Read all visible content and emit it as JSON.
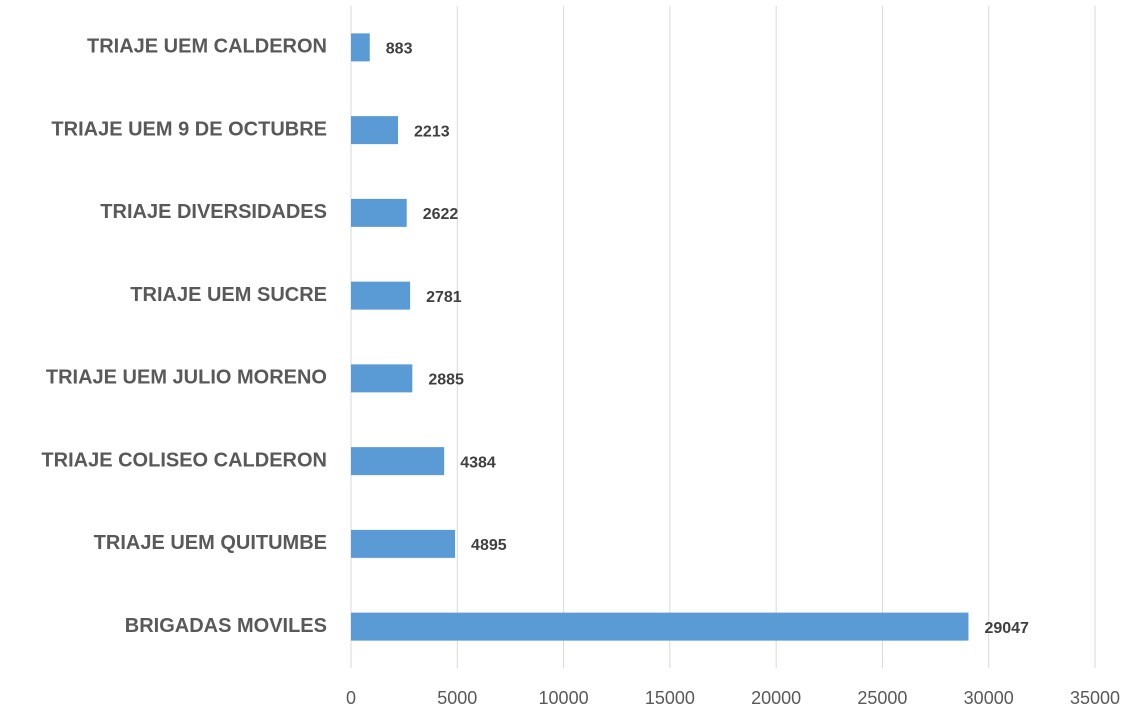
{
  "chart_data": {
    "type": "bar",
    "categories": [
      "TRIAJE UEM CALDERON",
      "TRIAJE UEM 9 DE OCTUBRE",
      "TRIAJE DIVERSIDADES",
      "TRIAJE UEM SUCRE",
      "TRIAJE UEM JULIO MORENO",
      "TRIAJE COLISEO CALDERON",
      "TRIAJE UEM QUITUMBE",
      "BRIGADAS MOVILES"
    ],
    "values": [
      883,
      2213,
      2622,
      2781,
      2885,
      4384,
      4895,
      29047
    ],
    "color": "#5b9bd5",
    "xlim": [
      0,
      35000
    ],
    "xticks": [
      0,
      5000,
      10000,
      15000,
      20000,
      25000,
      30000,
      35000
    ],
    "grid": true
  }
}
